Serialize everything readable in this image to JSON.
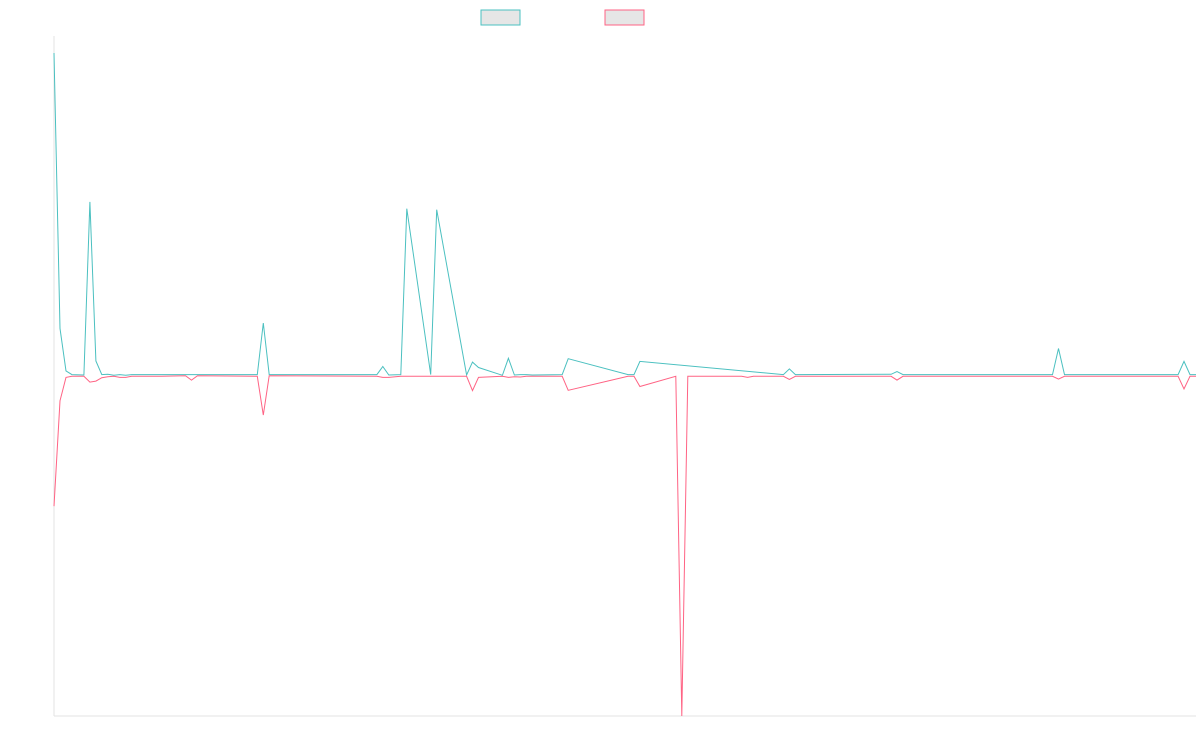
{
  "chart_data": {
    "type": "line",
    "title": "",
    "xlabel": "",
    "ylabel": "",
    "grid": false,
    "legend": "top-center",
    "ylim": [
      -1.0,
      1.0
    ],
    "xlim": [
      0,
      191
    ],
    "series": [
      {
        "color": "#4bc0c0",
        "fill": "#e6e6e6",
        "x": [
          0,
          1,
          2,
          3,
          5,
          6,
          7,
          8,
          9,
          10,
          11,
          12,
          13,
          34,
          35,
          36,
          54,
          55,
          56,
          58,
          59,
          63,
          64,
          69,
          70,
          71,
          75,
          76,
          77,
          78,
          79,
          80,
          85,
          86,
          96,
          97,
          98,
          122,
          123,
          124,
          140,
          141,
          142,
          167,
          168,
          169,
          188,
          189,
          190,
          191
        ],
        "y": [
          0.95,
          0.14,
          0.015,
          0.004,
          0.003,
          0.512,
          0.044,
          0.004,
          0.005,
          0.002,
          0.004,
          0.002,
          0.004,
          0.004,
          0.156,
          0.004,
          0.004,
          0.028,
          0.003,
          0.004,
          0.492,
          0.004,
          0.489,
          0.003,
          0.041,
          0.025,
          0.002,
          0.052,
          0.003,
          0.004,
          0.004,
          0.003,
          0.004,
          0.051,
          0.004,
          0.004,
          0.043,
          0.004,
          0.021,
          0.004,
          0.005,
          0.013,
          0.004,
          0.004,
          0.081,
          0.004,
          0.004,
          0.043,
          0.004,
          0.004
        ]
      },
      {
        "color": "#ff6384",
        "fill": "#e6e6e6",
        "x": [
          0,
          1,
          2,
          3,
          5,
          6,
          7,
          8,
          9,
          10,
          11,
          12,
          13,
          18,
          22,
          23,
          24,
          34,
          35,
          36,
          54,
          55,
          56,
          58,
          59,
          63,
          64,
          69,
          70,
          71,
          75,
          76,
          77,
          78,
          79,
          80,
          85,
          86,
          96,
          97,
          98,
          104,
          105,
          106,
          115,
          116,
          117,
          122,
          123,
          124,
          140,
          141,
          142,
          167,
          168,
          169,
          188,
          189,
          190,
          191
        ],
        "y": [
          -0.383,
          -0.073,
          -0.004,
          -0.001,
          -0.001,
          -0.018,
          -0.015,
          -0.005,
          -0.002,
          -0.001,
          -0.004,
          -0.004,
          -0.001,
          -0.001,
          0.001,
          -0.012,
          0.001,
          -0.001,
          -0.115,
          0.001,
          -0.001,
          -0.004,
          -0.004,
          -0.001,
          -0.001,
          -0.001,
          -0.001,
          -0.001,
          -0.043,
          -0.004,
          -0.001,
          -0.004,
          -0.002,
          -0.003,
          -0.001,
          -0.001,
          -0.001,
          -0.042,
          -0.001,
          -0.001,
          -0.031,
          -0.001,
          -1.0,
          -0.001,
          -0.001,
          -0.004,
          -0.001,
          -0.001,
          -0.01,
          -0.001,
          -0.001,
          -0.012,
          -0.001,
          -0.001,
          -0.009,
          -0.001,
          -0.001,
          -0.038,
          -0.001,
          -0.001
        ]
      }
    ]
  }
}
